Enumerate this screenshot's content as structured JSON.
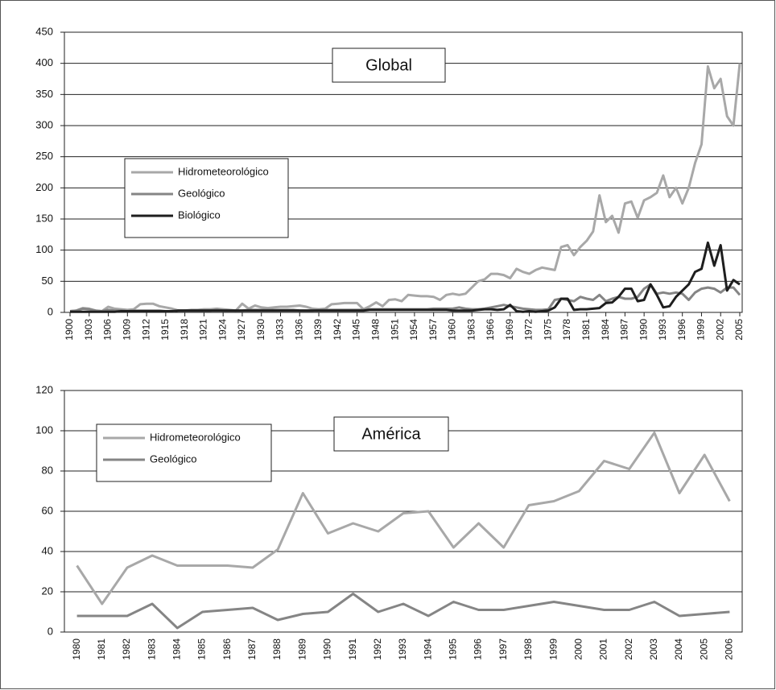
{
  "chart_data": [
    {
      "type": "line",
      "title": "Global",
      "x": [
        1900,
        1901,
        1902,
        1903,
        1904,
        1905,
        1906,
        1907,
        1908,
        1909,
        1910,
        1911,
        1912,
        1913,
        1914,
        1915,
        1916,
        1917,
        1918,
        1919,
        1920,
        1921,
        1922,
        1923,
        1924,
        1925,
        1926,
        1927,
        1928,
        1929,
        1930,
        1931,
        1932,
        1933,
        1934,
        1935,
        1936,
        1937,
        1938,
        1939,
        1940,
        1941,
        1942,
        1943,
        1944,
        1945,
        1946,
        1947,
        1948,
        1949,
        1950,
        1951,
        1952,
        1953,
        1954,
        1955,
        1956,
        1957,
        1958,
        1959,
        1960,
        1961,
        1962,
        1963,
        1964,
        1965,
        1966,
        1967,
        1968,
        1969,
        1970,
        1971,
        1972,
        1973,
        1974,
        1975,
        1976,
        1977,
        1978,
        1979,
        1980,
        1981,
        1982,
        1983,
        1984,
        1985,
        1986,
        1987,
        1988,
        1989,
        1990,
        1991,
        1992,
        1993,
        1994,
        1995,
        1996,
        1997,
        1998,
        1999,
        2000,
        2001,
        2002,
        2003,
        2004,
        2005
      ],
      "series": [
        {
          "name": "Hidrometeorológico",
          "color": "#a8a8a8",
          "values": [
            2,
            3,
            7,
            6,
            3,
            2,
            9,
            6,
            5,
            4,
            5,
            13,
            14,
            14,
            10,
            8,
            6,
            3,
            3,
            4,
            4,
            5,
            5,
            6,
            5,
            4,
            3,
            14,
            6,
            11,
            8,
            7,
            8,
            9,
            9,
            10,
            11,
            9,
            6,
            5,
            6,
            13,
            14,
            15,
            15,
            15,
            5,
            10,
            16,
            10,
            20,
            21,
            18,
            28,
            27,
            26,
            26,
            25,
            20,
            28,
            30,
            28,
            30,
            40,
            50,
            53,
            62,
            62,
            60,
            55,
            70,
            65,
            62,
            68,
            72,
            70,
            68,
            105,
            108,
            92,
            105,
            115,
            130,
            188,
            145,
            155,
            128,
            175,
            178,
            152,
            180,
            185,
            192,
            220,
            185,
            200,
            175,
            200,
            240,
            270,
            395,
            360,
            375,
            315,
            300,
            400
          ]
        },
        {
          "name": "Geológico",
          "color": "#858585",
          "values": [
            2,
            3,
            6,
            5,
            3,
            2,
            4,
            3,
            3,
            2,
            3,
            3,
            3,
            3,
            3,
            2,
            2,
            3,
            3,
            3,
            3,
            3,
            3,
            4,
            3,
            3,
            3,
            3,
            4,
            4,
            4,
            4,
            4,
            4,
            4,
            4,
            3,
            3,
            3,
            4,
            4,
            4,
            4,
            4,
            4,
            4,
            4,
            5,
            5,
            5,
            5,
            5,
            5,
            5,
            5,
            5,
            5,
            6,
            6,
            6,
            6,
            8,
            6,
            5,
            5,
            6,
            8,
            10,
            12,
            10,
            8,
            6,
            5,
            4,
            4,
            5,
            20,
            22,
            20,
            18,
            25,
            22,
            20,
            28,
            18,
            22,
            25,
            22,
            22,
            25,
            38,
            45,
            30,
            32,
            30,
            32,
            30,
            20,
            32,
            38,
            40,
            38,
            32,
            40,
            40,
            28
          ]
        },
        {
          "name": "Biológico",
          "color": "#1e1e1e",
          "values": [
            1,
            1,
            1,
            1,
            1,
            1,
            1,
            1,
            2,
            2,
            2,
            2,
            2,
            2,
            2,
            2,
            2,
            3,
            3,
            3,
            3,
            3,
            3,
            3,
            3,
            3,
            3,
            3,
            3,
            3,
            3,
            3,
            3,
            3,
            3,
            3,
            3,
            3,
            3,
            3,
            3,
            3,
            3,
            3,
            3,
            3,
            3,
            4,
            4,
            4,
            4,
            4,
            4,
            4,
            4,
            4,
            4,
            4,
            4,
            4,
            3,
            3,
            3,
            3,
            4,
            5,
            5,
            4,
            5,
            12,
            2,
            1,
            2,
            1,
            2,
            3,
            8,
            22,
            22,
            4,
            5,
            5,
            6,
            7,
            15,
            16,
            25,
            38,
            38,
            18,
            20,
            45,
            28,
            8,
            10,
            25,
            35,
            45,
            65,
            70,
            112,
            75,
            108,
            35,
            52,
            45
          ]
        }
      ],
      "xlim": [
        1900,
        2005
      ],
      "xticks": [
        1900,
        1903,
        1906,
        1909,
        1912,
        1915,
        1918,
        1921,
        1924,
        1927,
        1930,
        1933,
        1936,
        1939,
        1942,
        1945,
        1948,
        1951,
        1954,
        1957,
        1960,
        1963,
        1966,
        1969,
        1972,
        1975,
        1978,
        1981,
        1984,
        1987,
        1990,
        1993,
        1996,
        1999,
        2002,
        2005
      ],
      "ylim": [
        0,
        450
      ],
      "yticks": [
        0,
        50,
        100,
        150,
        200,
        250,
        300,
        350,
        400,
        450
      ],
      "grid": true
    },
    {
      "type": "line",
      "title": "América",
      "categories": [
        "1980",
        "1981",
        "1982",
        "1983",
        "1984",
        "1985",
        "1986",
        "1987",
        "1988",
        "1989",
        "1990",
        "1991",
        "1992",
        "1993",
        "1994",
        "1995",
        "1996",
        "1997",
        "1998",
        "1999",
        "2000",
        "2001",
        "2002",
        "2003",
        "2004",
        "2005",
        "2006"
      ],
      "series": [
        {
          "name": "Hidrometeorológico",
          "color": "#a8a8a8",
          "values": [
            33,
            14,
            32,
            38,
            33,
            33,
            33,
            32,
            41,
            69,
            49,
            54,
            50,
            59,
            60,
            42,
            54,
            42,
            63,
            65,
            70,
            85,
            81,
            99,
            69,
            88,
            65
          ]
        },
        {
          "name": "Geológico",
          "color": "#858585",
          "values": [
            8,
            8,
            8,
            14,
            2,
            10,
            11,
            12,
            6,
            9,
            10,
            19,
            10,
            14,
            8,
            15,
            11,
            11,
            13,
            15,
            13,
            11,
            11,
            15,
            8,
            9,
            10
          ]
        }
      ],
      "ylim": [
        0,
        120
      ],
      "yticks": [
        0,
        20,
        40,
        60,
        80,
        100,
        120
      ],
      "grid": true
    }
  ]
}
